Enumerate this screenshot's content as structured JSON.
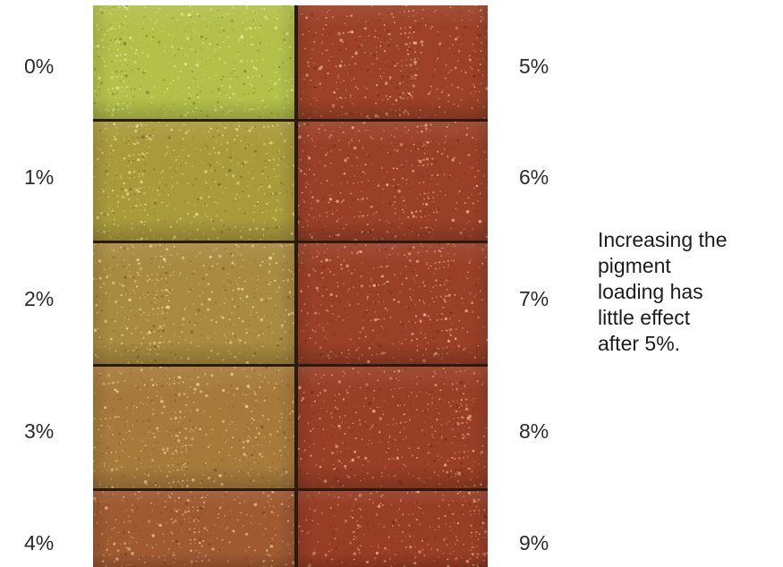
{
  "left_labels": [
    "0%",
    "1%",
    "2%",
    "3%",
    "4%"
  ],
  "right_labels": [
    "5%",
    "6%",
    "7%",
    "8%",
    "9%"
  ],
  "note_lines": [
    "Increasing the",
    "pigment",
    "loading has",
    "little effect",
    "after 5%."
  ],
  "bricks": [
    {
      "pigment": "0%",
      "color": "#b3c04a",
      "fleck": "#e6ea9a"
    },
    {
      "pigment": "1%",
      "color": "#a99a3c",
      "fleck": "#e6dc8c"
    },
    {
      "pigment": "2%",
      "color": "#a88a40",
      "fleck": "#e8d48e"
    },
    {
      "pigment": "3%",
      "color": "#a77a3c",
      "fleck": "#e6cc86"
    },
    {
      "pigment": "4%",
      "color": "#9f5a32",
      "fleck": "#e2b878"
    },
    {
      "pigment": "5%",
      "color": "#9d4128",
      "fleck": "#e4b07a"
    },
    {
      "pigment": "6%",
      "color": "#9b4028",
      "fleck": "#e2ac78"
    },
    {
      "pigment": "7%",
      "color": "#9a3f28",
      "fleck": "#e2aa76"
    },
    {
      "pigment": "8%",
      "color": "#993e27",
      "fleck": "#e0a874"
    },
    {
      "pigment": "9%",
      "color": "#983d26",
      "fleck": "#e0a672"
    }
  ]
}
